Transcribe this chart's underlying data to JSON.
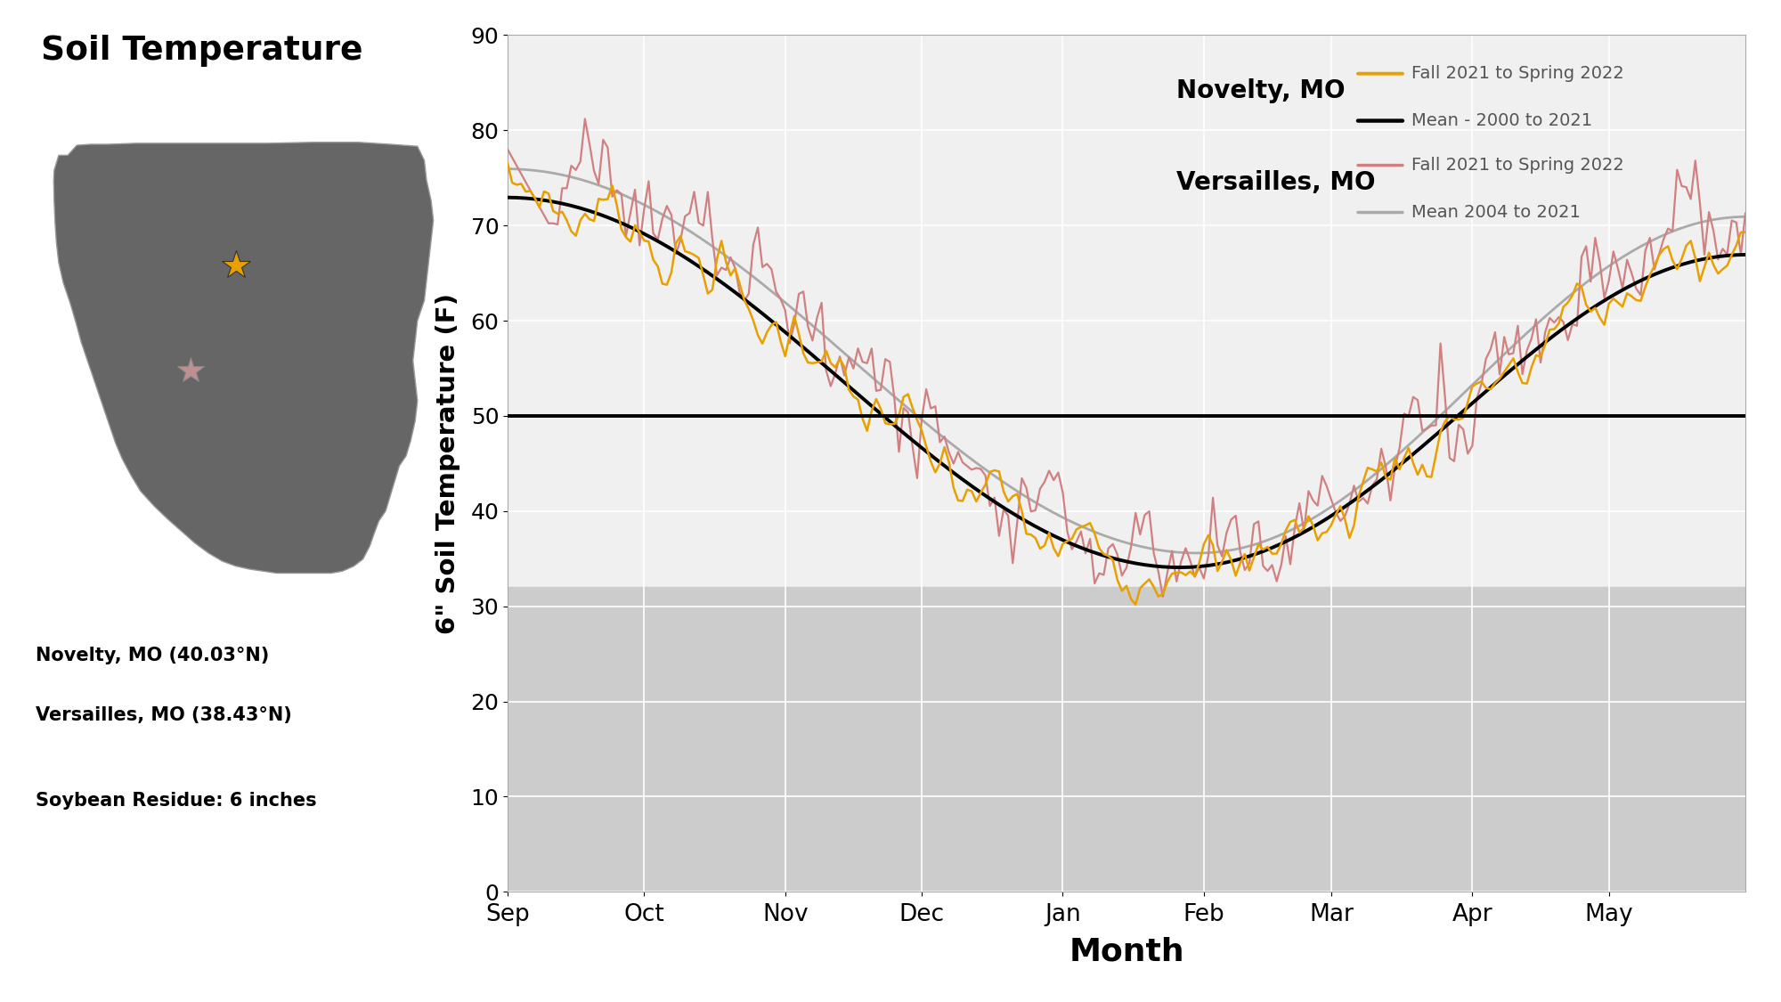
{
  "title": "Soil Temperature",
  "ylabel": "6\" Soil Temperature (F)",
  "xlabel": "Month",
  "months": [
    "Sep",
    "Oct",
    "Nov",
    "Dec",
    "Jan",
    "Feb",
    "Mar",
    "Apr",
    "May"
  ],
  "ylim": [
    0,
    90
  ],
  "yticks": [
    0,
    10,
    20,
    30,
    40,
    50,
    60,
    70,
    80,
    90
  ],
  "shaded_below": 32,
  "hline_y": 50,
  "novelty_label": "Novelty, MO",
  "versailles_label": "Versailles, MO",
  "legend_novelty_fall": "Fall 2021 to Spring 2022",
  "legend_novelty_mean": "Mean - 2000 to 2021",
  "legend_versailles_fall": "Fall 2021 to Spring 2022",
  "legend_versailles_mean": "Mean 2004 to 2021",
  "novelty_fall_color": "#E8A000",
  "novelty_mean_color": "#000000",
  "versailles_fall_color": "#D08080",
  "versailles_mean_color": "#aaaaaa",
  "map_color": "#666666",
  "novelty_star_color": "#E8A000",
  "versailles_star_color": "#C09090",
  "annotation_novelty": "Novelty, MO (40.03°N)",
  "annotation_versailles": "Versailles, MO (38.43°N)",
  "annotation_residue": "Soybean Residue: 6 inches",
  "total_days": 273,
  "month_ticks": [
    0,
    30,
    61,
    91,
    122,
    153,
    181,
    212,
    242
  ]
}
